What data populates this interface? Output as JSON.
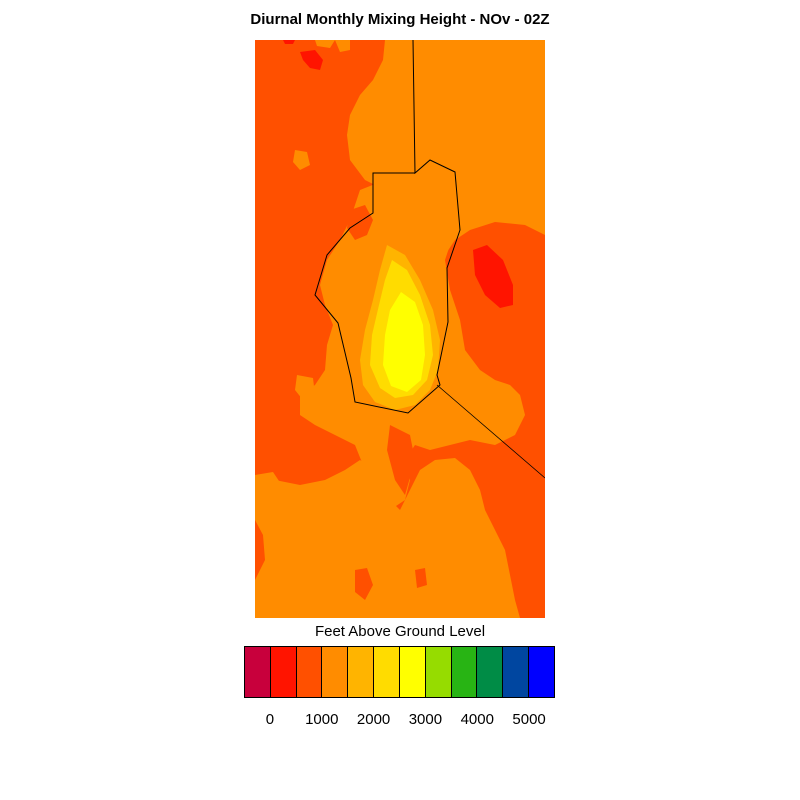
{
  "title": "Diurnal Monthly Mixing Height - NOv - 02Z",
  "colorbar": {
    "label": "Feet Above Ground Level",
    "colors": [
      "#c8003c",
      "#ff1400",
      "#ff5000",
      "#ff8c00",
      "#ffb400",
      "#ffdc00",
      "#ffff00",
      "#96dc00",
      "#28b414",
      "#008c46",
      "#0046a0",
      "#0000ff"
    ],
    "ticks": [
      "0",
      "1000",
      "2000",
      "3000",
      "4000",
      "5000"
    ]
  },
  "map": {
    "background_color": "#ff5000",
    "level_colors": {
      "lt0": "#ff1400",
      "1000_1500": "#ff8c00",
      "1500_2000": "#ffb400",
      "2000_2500": "#ffdc00",
      "2500_3000": "#ffff00"
    }
  }
}
